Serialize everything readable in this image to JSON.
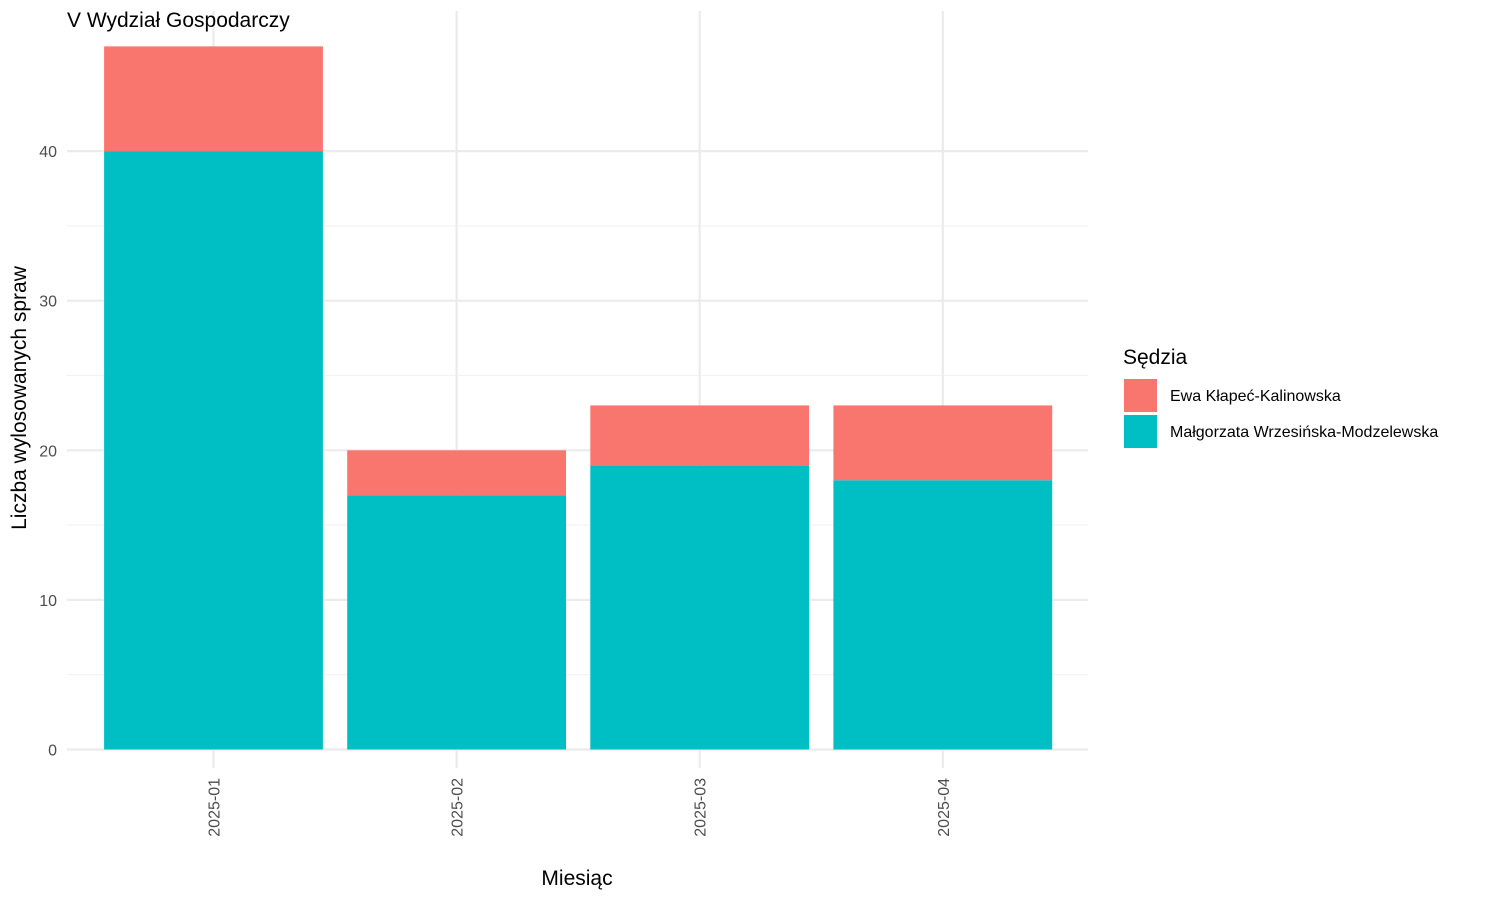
{
  "chart_data": {
    "type": "bar",
    "stacked": true,
    "title": "V Wydział Gospodarczy",
    "xlabel": "Miesiąc",
    "ylabel": "Liczba wylosowanych spraw",
    "categories": [
      "2025-01",
      "2025-02",
      "2025-03",
      "2025-04"
    ],
    "series": [
      {
        "name": "Małgorzata Wrzesińska-Modzelewska",
        "color": "#00BFC4",
        "values": [
          40,
          17,
          19,
          18
        ]
      },
      {
        "name": "Ewa Kłapeć-Kalinowska",
        "color": "#F8766D",
        "values": [
          7,
          3,
          4,
          5
        ]
      }
    ],
    "ylim": [
      0,
      47
    ],
    "yticks": [
      0,
      10,
      20,
      30,
      40
    ],
    "grid": true,
    "legend": {
      "title": "Sędzia",
      "position": "right",
      "entries": [
        "Ewa Kłapeć-Kalinowska",
        "Małgorzata Wrzesińska-Modzelewska"
      ],
      "colors": [
        "#F8766D",
        "#00BFC4"
      ]
    }
  }
}
